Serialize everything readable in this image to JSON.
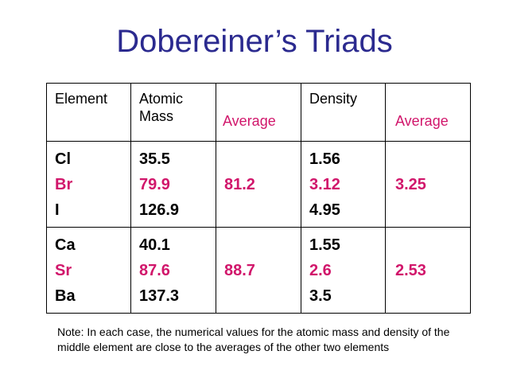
{
  "title": "Dobereiner’s Triads",
  "table": {
    "headers": {
      "element": "Element",
      "atomic_mass": "Atomic Mass",
      "average1": "Average",
      "density": "Density",
      "average2": "Average"
    },
    "triads": [
      {
        "elements": [
          "Cl",
          "Br",
          "I"
        ],
        "masses": [
          "35.5",
          "79.9",
          "126.9"
        ],
        "mass_average": "81.2",
        "densities": [
          "1.56",
          "3.12",
          "4.95"
        ],
        "density_average": "3.25"
      },
      {
        "elements": [
          "Ca",
          "Sr",
          "Ba"
        ],
        "masses": [
          "40.1",
          "87.6",
          "137.3"
        ],
        "mass_average": "88.7",
        "densities": [
          "1.55",
          "2.6",
          "3.5"
        ],
        "density_average": "2.53"
      }
    ]
  },
  "note": "Note:  In each case,  the numerical values for the atomic mass and density of the middle element are close to the averages of the other two elements",
  "colors": {
    "title": "#2b2a8f",
    "highlight": "#d1166b"
  }
}
